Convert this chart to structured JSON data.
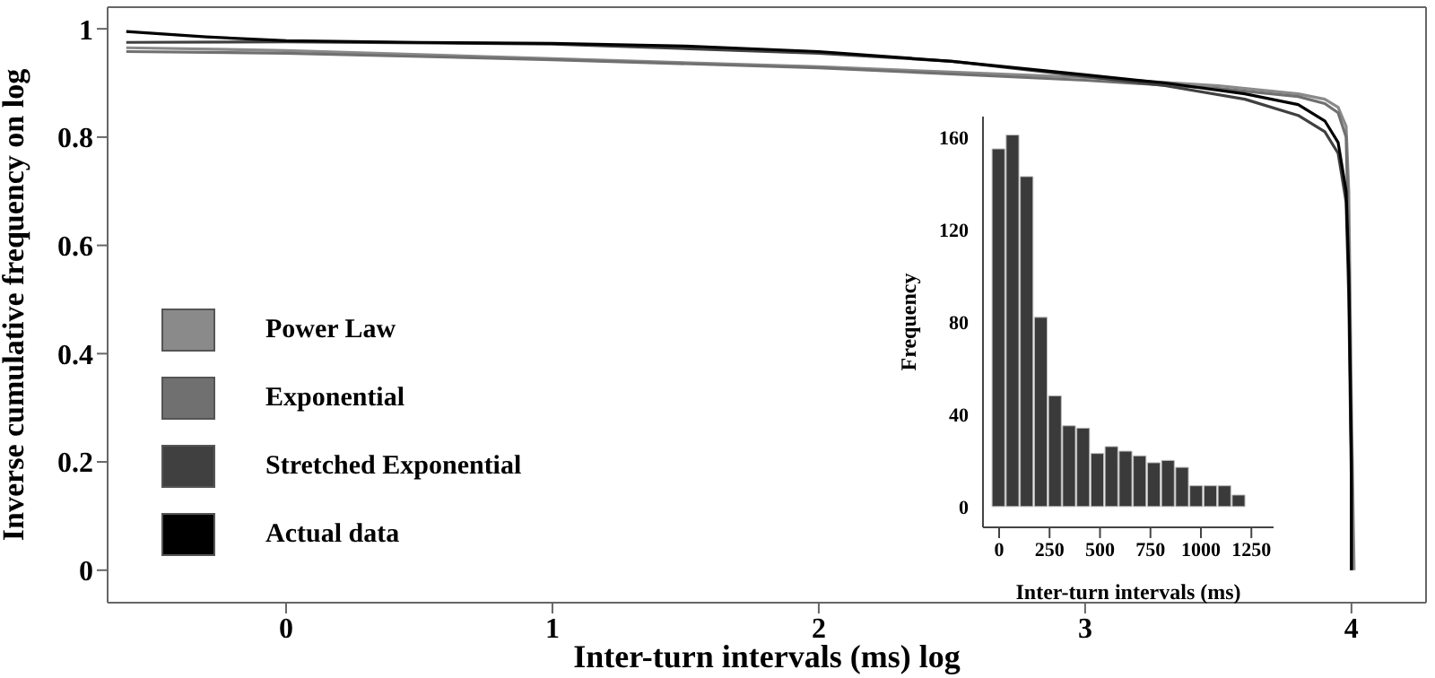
{
  "chart_data": [
    {
      "type": "line",
      "xlabel": "Inter-turn intervals (ms) log",
      "ylabel": "Inverse cumulative frequency on log",
      "xlim": [
        -0.67,
        4.28
      ],
      "ylim": [
        -0.06,
        1.04
      ],
      "xticks": [
        0,
        1,
        2,
        3,
        4
      ],
      "yticks": [
        0,
        0.2,
        0.4,
        0.6,
        0.8,
        1
      ],
      "grid": false,
      "legend": "bottom left",
      "marker": "none",
      "line_style": "solid",
      "series": [
        {
          "name": "Power Law",
          "color": "#8a8a8a",
          "x": [
            -0.6,
            0,
            1,
            2,
            2.5,
            3,
            3.5,
            3.8,
            3.9,
            3.95,
            3.98,
            3.99,
            4.0,
            4.01
          ],
          "values": [
            0.965,
            0.96,
            0.945,
            0.93,
            0.92,
            0.91,
            0.895,
            0.88,
            0.87,
            0.855,
            0.82,
            0.7,
            0.3,
            0
          ]
        },
        {
          "name": "Exponential",
          "color": "#707070",
          "x": [
            -0.6,
            0,
            1,
            2,
            3,
            3.5,
            3.8,
            3.9,
            3.95,
            3.98,
            3.99,
            4.0,
            4.0
          ],
          "values": [
            0.958,
            0.955,
            0.943,
            0.928,
            0.905,
            0.89,
            0.875,
            0.862,
            0.845,
            0.8,
            0.6,
            0.2,
            0
          ]
        },
        {
          "name": "Stretched Exponential",
          "color": "#404040",
          "x": [
            -0.6,
            0,
            1,
            2,
            2.5,
            3,
            3.3,
            3.6,
            3.8,
            3.9,
            3.95,
            3.98,
            3.99,
            4.0,
            4.0
          ],
          "values": [
            0.975,
            0.976,
            0.972,
            0.955,
            0.94,
            0.912,
            0.895,
            0.87,
            0.84,
            0.81,
            0.77,
            0.68,
            0.5,
            0.15,
            0
          ]
        },
        {
          "name": "Actual data",
          "color": "#000000",
          "x": [
            -0.6,
            -0.3,
            0,
            0.5,
            1,
            1.5,
            2,
            2.5,
            3,
            3.3,
            3.6,
            3.8,
            3.9,
            3.95,
            3.98,
            3.99,
            4.0,
            4.0
          ],
          "values": [
            0.995,
            0.985,
            0.978,
            0.975,
            0.973,
            0.968,
            0.958,
            0.94,
            0.915,
            0.9,
            0.88,
            0.86,
            0.83,
            0.79,
            0.7,
            0.55,
            0.2,
            0
          ]
        }
      ]
    },
    {
      "type": "histogram",
      "xlabel": "Inter-turn intervals (ms)",
      "ylabel": "Frequency",
      "xlim": [
        -80,
        1360
      ],
      "ylim": [
        -9,
        169
      ],
      "xticks": [
        0,
        250,
        500,
        750,
        1000,
        1250
      ],
      "yticks": [
        0,
        40,
        80,
        120,
        160
      ],
      "grid": false,
      "color": "#3a3a3a",
      "bins": [
        -35,
        35,
        105,
        175,
        245,
        315,
        385,
        455,
        525,
        595,
        665,
        735,
        805,
        875,
        945,
        1015,
        1085,
        1155,
        1225
      ],
      "values": [
        155,
        161,
        143,
        82,
        48,
        35,
        34,
        23,
        26,
        24,
        22,
        19,
        20,
        17,
        9,
        9,
        9,
        5
      ]
    }
  ]
}
